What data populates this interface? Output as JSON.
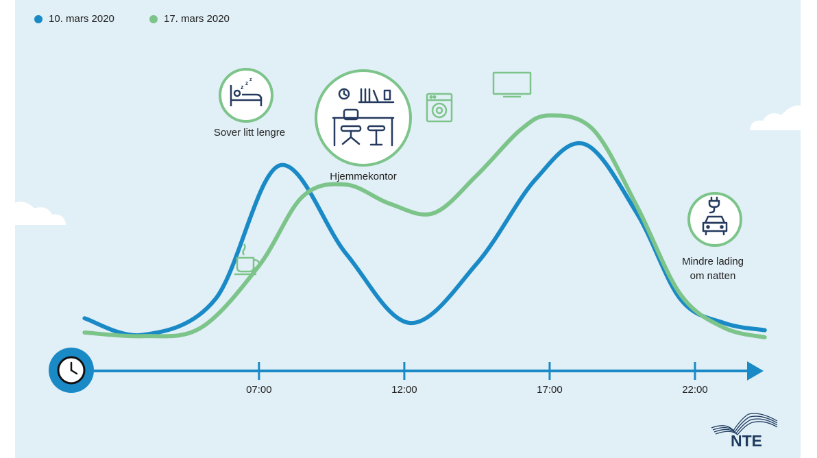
{
  "colors": {
    "background": "#e1eff6",
    "series_blue": "#1a8ac6",
    "series_green": "#7cc48a",
    "axis": "#1a8ac6",
    "icon_dark": "#253a5e",
    "logo": "#1f3a5f"
  },
  "legend": [
    {
      "label": "10. mars 2020",
      "color": "#1a8ac6"
    },
    {
      "label": "17. mars 2020",
      "color": "#7cc48a"
    }
  ],
  "annotations": {
    "sleep": "Sover litt lengre",
    "homeoffice": "Hjemmekontor",
    "charging_line1": "Mindre lading",
    "charging_line2": "om natten"
  },
  "icons": [
    "clock-icon",
    "bed-icon",
    "coffee-icon",
    "home-office-icon",
    "washing-machine-icon",
    "tv-icon",
    "car-charging-icon"
  ],
  "logo_text": "NTE",
  "chart_data": {
    "type": "line",
    "title": "",
    "xlabel": "",
    "ylabel": "",
    "x_unit": "hour",
    "xlim": [
      0,
      24.5
    ],
    "ylim": [
      0,
      10
    ],
    "x_ticks": [
      7,
      12,
      17,
      22
    ],
    "x_tick_labels": [
      "07:00",
      "12:00",
      "17:00",
      "22:00"
    ],
    "grid": false,
    "legend_position": "top-left",
    "series": [
      {
        "name": "10. mars 2020",
        "color": "#1a8ac6",
        "x": [
          1,
          3,
          5.5,
          7.7,
          10,
          12.2,
          14.5,
          16.5,
          18.2,
          20,
          21.5,
          23,
          24.4
        ],
        "y": [
          0.8,
          0.1,
          1.6,
          7.2,
          3.5,
          0.6,
          3.1,
          6.6,
          8.1,
          5.2,
          1.6,
          0.6,
          0.3
        ]
      },
      {
        "name": "17. mars 2020",
        "color": "#7cc48a",
        "x": [
          1,
          3,
          5,
          7,
          8.5,
          10,
          11.5,
          13,
          14.5,
          16,
          17,
          18.5,
          20,
          21.5,
          23,
          24.4
        ],
        "y": [
          0.2,
          0.05,
          0.4,
          3.0,
          5.9,
          6.4,
          5.6,
          5.2,
          6.8,
          8.7,
          9.3,
          8.7,
          5.5,
          1.8,
          0.4,
          0.0
        ]
      }
    ]
  }
}
